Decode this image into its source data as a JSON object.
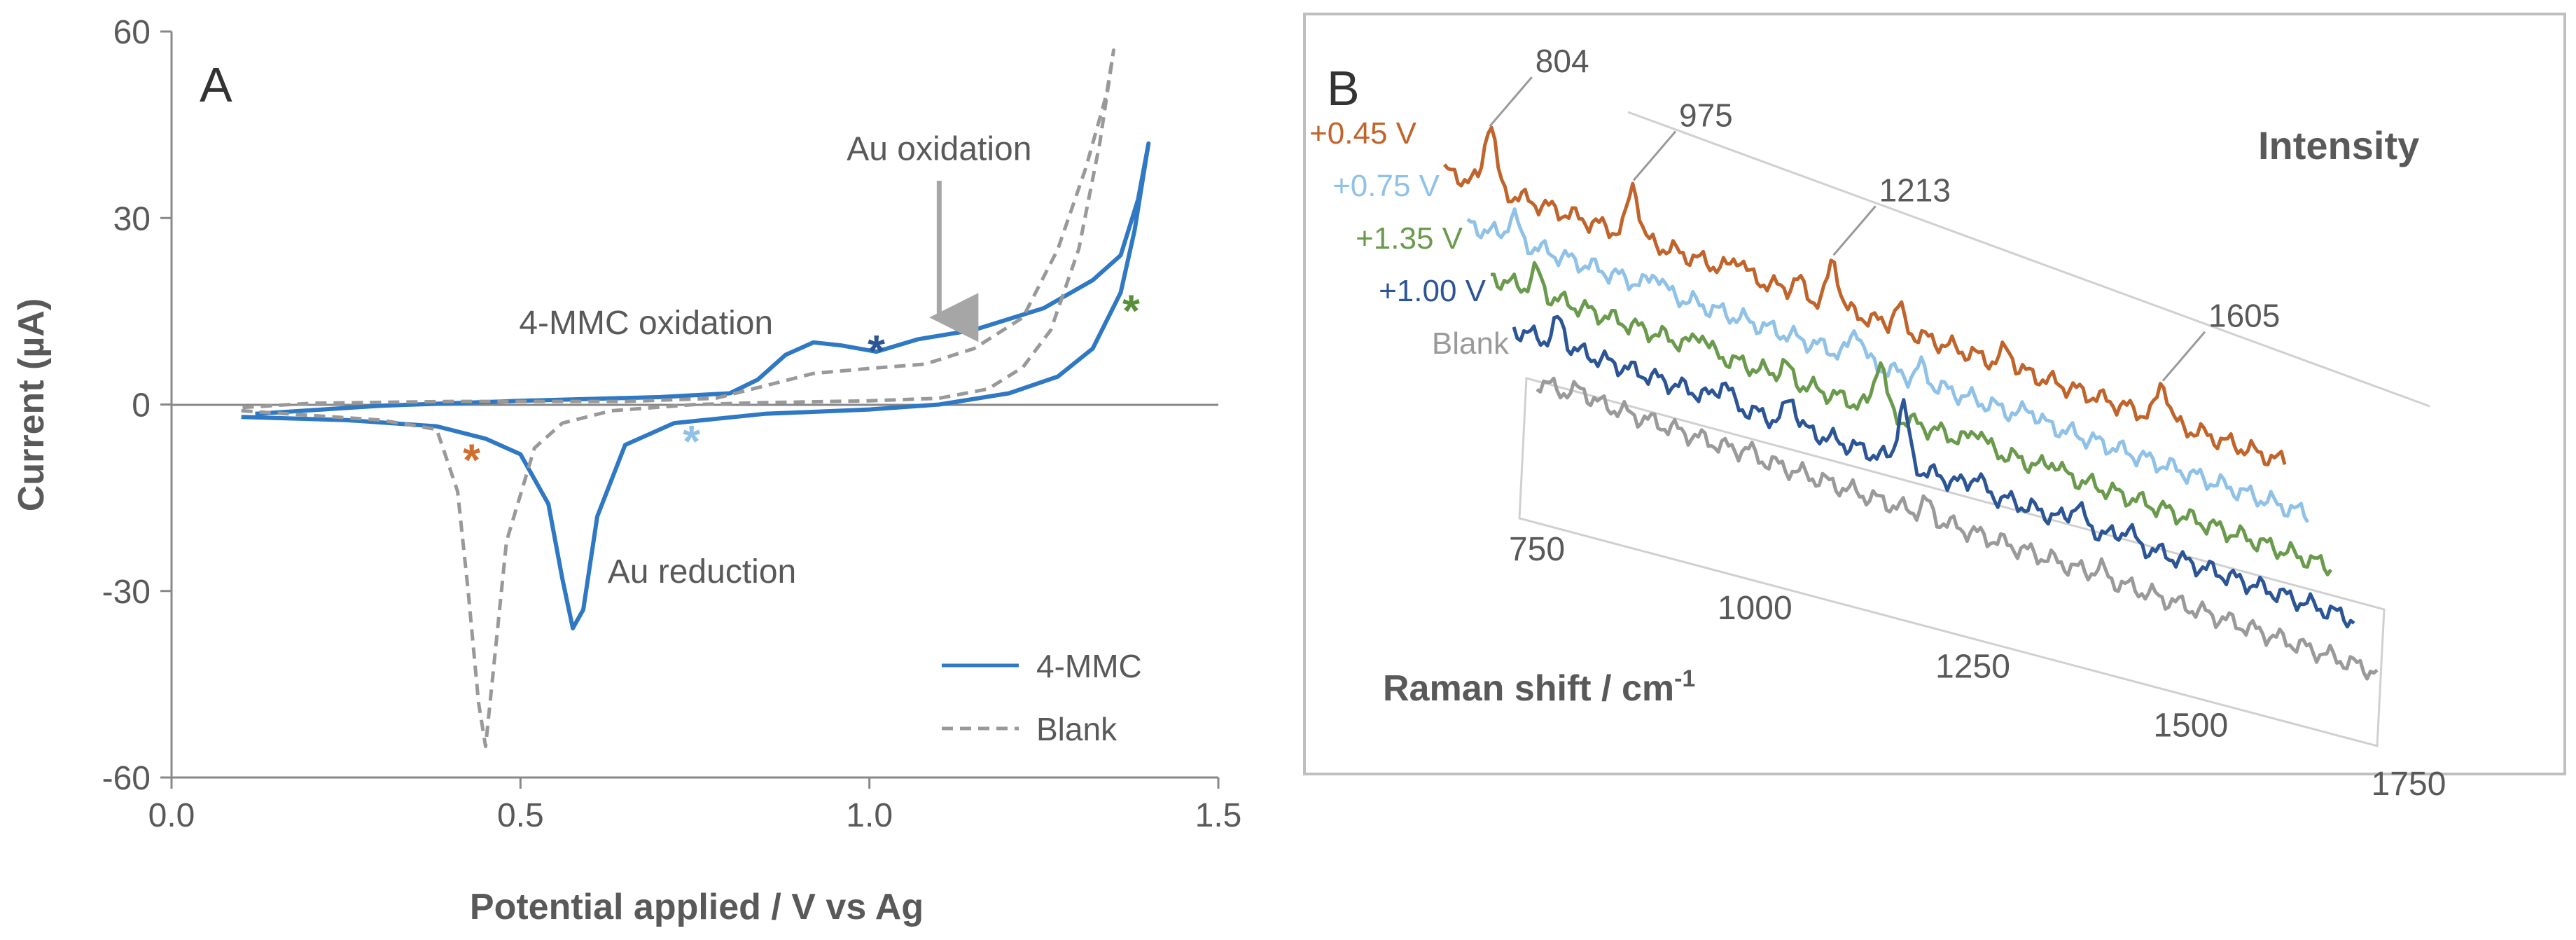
{
  "chart_data": [
    {
      "panel": "A",
      "type": "line",
      "panel_label": "A",
      "xlabel": "Potential applied / V vs Ag",
      "ylabel": "Current (µA)",
      "xlim": [
        0.0,
        1.5
      ],
      "ylim": [
        -60,
        60
      ],
      "xticks": [
        "0.0",
        "0.5",
        "1.0",
        "1.5"
      ],
      "yticks": [
        "60",
        "30",
        "0",
        "-30",
        "-60"
      ],
      "legend_position": "bottom-right",
      "series": [
        {
          "name": "4-MMC",
          "style": "solid",
          "color": "#2e78c4",
          "points": [
            [
              0.1,
              -2.0
            ],
            [
              0.25,
              -2.5
            ],
            [
              0.38,
              -3.5
            ],
            [
              0.45,
              -5.5
            ],
            [
              0.5,
              -8.0
            ],
            [
              0.54,
              -16
            ],
            [
              0.56,
              -28
            ],
            [
              0.575,
              -36
            ],
            [
              0.59,
              -33
            ],
            [
              0.61,
              -18
            ],
            [
              0.65,
              -6.5
            ],
            [
              0.72,
              -3.0
            ],
            [
              0.85,
              -1.5
            ],
            [
              1.0,
              -0.8
            ],
            [
              1.1,
              0.0
            ],
            [
              1.2,
              1.8
            ],
            [
              1.27,
              4.5
            ],
            [
              1.32,
              9.0
            ],
            [
              1.36,
              18
            ],
            [
              1.38,
              28
            ],
            [
              1.4,
              42
            ],
            [
              1.385,
              33
            ],
            [
              1.36,
              24
            ],
            [
              1.32,
              20
            ],
            [
              1.25,
              15.5
            ],
            [
              1.15,
              12.0
            ],
            [
              1.07,
              10.5
            ],
            [
              1.01,
              8.5
            ],
            [
              0.96,
              9.5
            ],
            [
              0.92,
              10.0
            ],
            [
              0.88,
              8.0
            ],
            [
              0.84,
              4.0
            ],
            [
              0.8,
              1.8
            ],
            [
              0.7,
              1.2
            ],
            [
              0.5,
              0.6
            ],
            [
              0.3,
              -0.2
            ],
            [
              0.12,
              -1.5
            ]
          ]
        },
        {
          "name": "Blank",
          "style": "dashed",
          "color": "#999999",
          "points": [
            [
              0.1,
              -1.0
            ],
            [
              0.3,
              -2.5
            ],
            [
              0.38,
              -4.0
            ],
            [
              0.41,
              -14
            ],
            [
              0.425,
              -30
            ],
            [
              0.44,
              -48
            ],
            [
              0.45,
              -55
            ],
            [
              0.46,
              -44
            ],
            [
              0.48,
              -22
            ],
            [
              0.52,
              -7.0
            ],
            [
              0.56,
              -3.0
            ],
            [
              0.63,
              -1.0
            ],
            [
              0.75,
              0.0
            ],
            [
              0.85,
              0.3
            ],
            [
              1.0,
              0.6
            ],
            [
              1.1,
              1.0
            ],
            [
              1.17,
              2.5
            ],
            [
              1.22,
              6.0
            ],
            [
              1.26,
              12
            ],
            [
              1.3,
              25
            ],
            [
              1.33,
              42
            ],
            [
              1.35,
              57
            ],
            [
              1.34,
              50
            ],
            [
              1.31,
              38
            ],
            [
              1.27,
              25
            ],
            [
              1.22,
              14
            ],
            [
              1.15,
              9.0
            ],
            [
              1.08,
              6.5
            ],
            [
              1.0,
              5.8
            ],
            [
              0.92,
              5.0
            ],
            [
              0.85,
              3.0
            ],
            [
              0.78,
              1.0
            ],
            [
              0.65,
              0.5
            ],
            [
              0.4,
              0.5
            ],
            [
              0.2,
              0.2
            ],
            [
              0.1,
              -0.5
            ]
          ]
        }
      ],
      "annotations": [
        {
          "text": "Au oxidation",
          "x": 1.1,
          "y": 41
        },
        {
          "text": "4-MMC oxidation",
          "x": 0.68,
          "y": 13
        },
        {
          "text": "Au reduction",
          "x": 0.76,
          "y": -27
        },
        {
          "text": "*",
          "x": 1.01,
          "y": 9.5,
          "color": "#2c5596"
        },
        {
          "text": "*",
          "x": 1.375,
          "y": 16,
          "color": "#5a8f3a"
        },
        {
          "text": "*",
          "x": 0.745,
          "y": -5,
          "color": "#8fc2e6"
        },
        {
          "text": "*",
          "x": 0.43,
          "y": -8,
          "color": "#d06e2e"
        }
      ],
      "arrow": {
        "x": 1.1,
        "y_from": 36,
        "y_to": 14
      }
    },
    {
      "panel": "B",
      "type": "line",
      "panel_label": "B",
      "xlabel_base": "Raman shift / cm",
      "xlabel_sup": "-1",
      "ylabel": "Intensity",
      "xlim": [
        750,
        1750
      ],
      "xticks": [
        "750",
        "1000",
        "1250",
        "1500",
        "1750"
      ],
      "series": [
        {
          "name": "+0.45 V",
          "color": "#c0642b",
          "offset": 0
        },
        {
          "name": "+0.75 V",
          "color": "#8fc2e6",
          "offset": 1
        },
        {
          "name": "+1.35 V",
          "color": "#6a9a4c",
          "offset": 2
        },
        {
          "name": "+1.00 V",
          "color": "#2c5596",
          "offset": 3
        },
        {
          "name": "Blank",
          "color": "#9a9a9a",
          "offset": 4
        }
      ],
      "peak_labels": [
        {
          "text": "804",
          "x": 804
        },
        {
          "text": "975",
          "x": 975
        },
        {
          "text": "1213",
          "x": 1213
        },
        {
          "text": "1605",
          "x": 1605
        }
      ]
    }
  ]
}
